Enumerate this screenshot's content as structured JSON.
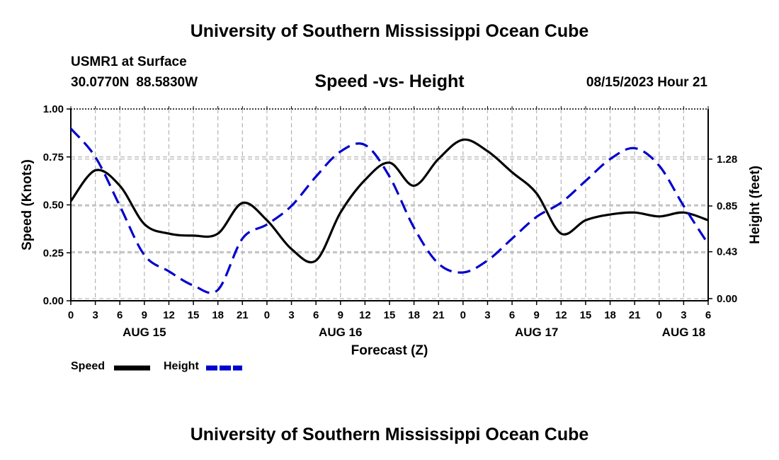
{
  "page": {
    "title": "University of Southern Mississippi Ocean Cube",
    "footer_title": "University of Southern Mississippi Ocean Cube",
    "station": "USMR1 at Surface",
    "latitude": "30.0770N",
    "longitude": "88.5830W",
    "datetime": "08/15/2023 Hour 21"
  },
  "legend": {
    "speed_label": "Speed",
    "height_label": "Height"
  },
  "colors": {
    "speed": "#000000",
    "height": "#0000cc",
    "grid": "#b4b4b4"
  },
  "chart_data": {
    "type": "line",
    "title": "Speed -vs- Height",
    "xlabel": "Forecast (Z)",
    "ylabel": "Speed (Knots)",
    "y2label": "Height (feet)",
    "x_range": [
      0,
      78
    ],
    "x_tick_step": 3,
    "x_tick_labels": [
      "0",
      "3",
      "6",
      "9",
      "12",
      "15",
      "18",
      "21",
      "0",
      "3",
      "6",
      "9",
      "12",
      "15",
      "18",
      "21",
      "0",
      "3",
      "6",
      "9",
      "12",
      "15",
      "18",
      "21",
      "0",
      "3",
      "6"
    ],
    "date_labels": [
      {
        "x": 9,
        "label": "AUG 15"
      },
      {
        "x": 33,
        "label": "AUG 16"
      },
      {
        "x": 57,
        "label": "AUG 17"
      },
      {
        "x": 75,
        "label": "AUG 18"
      }
    ],
    "ylim": [
      0,
      1.0
    ],
    "y_ticks": [
      0.0,
      0.25,
      0.5,
      0.75,
      1.0
    ],
    "y_tick_labels": [
      "0.00",
      "0.25",
      "0.50",
      "0.75",
      "1.00"
    ],
    "y2lim": [
      -0.02,
      1.74
    ],
    "y2_ticks": [
      0.0,
      0.43,
      0.85,
      1.28
    ],
    "y2_tick_labels": [
      "0.00",
      "0.43",
      "0.85",
      "1.28"
    ],
    "grid": true,
    "series": [
      {
        "name": "Speed",
        "axis": "left",
        "style": "solid",
        "x": [
          0,
          3,
          6,
          9,
          12,
          15,
          18,
          21,
          24,
          27,
          30,
          33,
          36,
          39,
          42,
          45,
          48,
          51,
          54,
          57,
          60,
          63,
          66,
          69,
          72,
          75,
          78
        ],
        "values": [
          0.52,
          0.68,
          0.6,
          0.4,
          0.35,
          0.34,
          0.35,
          0.51,
          0.42,
          0.27,
          0.21,
          0.46,
          0.63,
          0.72,
          0.6,
          0.74,
          0.84,
          0.78,
          0.67,
          0.56,
          0.35,
          0.42,
          0.45,
          0.46,
          0.44,
          0.46,
          0.42
        ]
      },
      {
        "name": "Height",
        "axis": "right",
        "style": "dashed",
        "x": [
          0,
          3,
          6,
          9,
          12,
          15,
          18,
          21,
          24,
          27,
          30,
          33,
          36,
          39,
          42,
          45,
          48,
          51,
          54,
          57,
          60,
          63,
          66,
          69,
          72,
          75,
          78
        ],
        "values": [
          1.56,
          1.3,
          0.85,
          0.4,
          0.25,
          0.12,
          0.08,
          0.55,
          0.68,
          0.85,
          1.12,
          1.35,
          1.41,
          1.12,
          0.65,
          0.32,
          0.24,
          0.35,
          0.55,
          0.75,
          0.88,
          1.08,
          1.28,
          1.38,
          1.22,
          0.85,
          0.5
        ]
      }
    ]
  }
}
